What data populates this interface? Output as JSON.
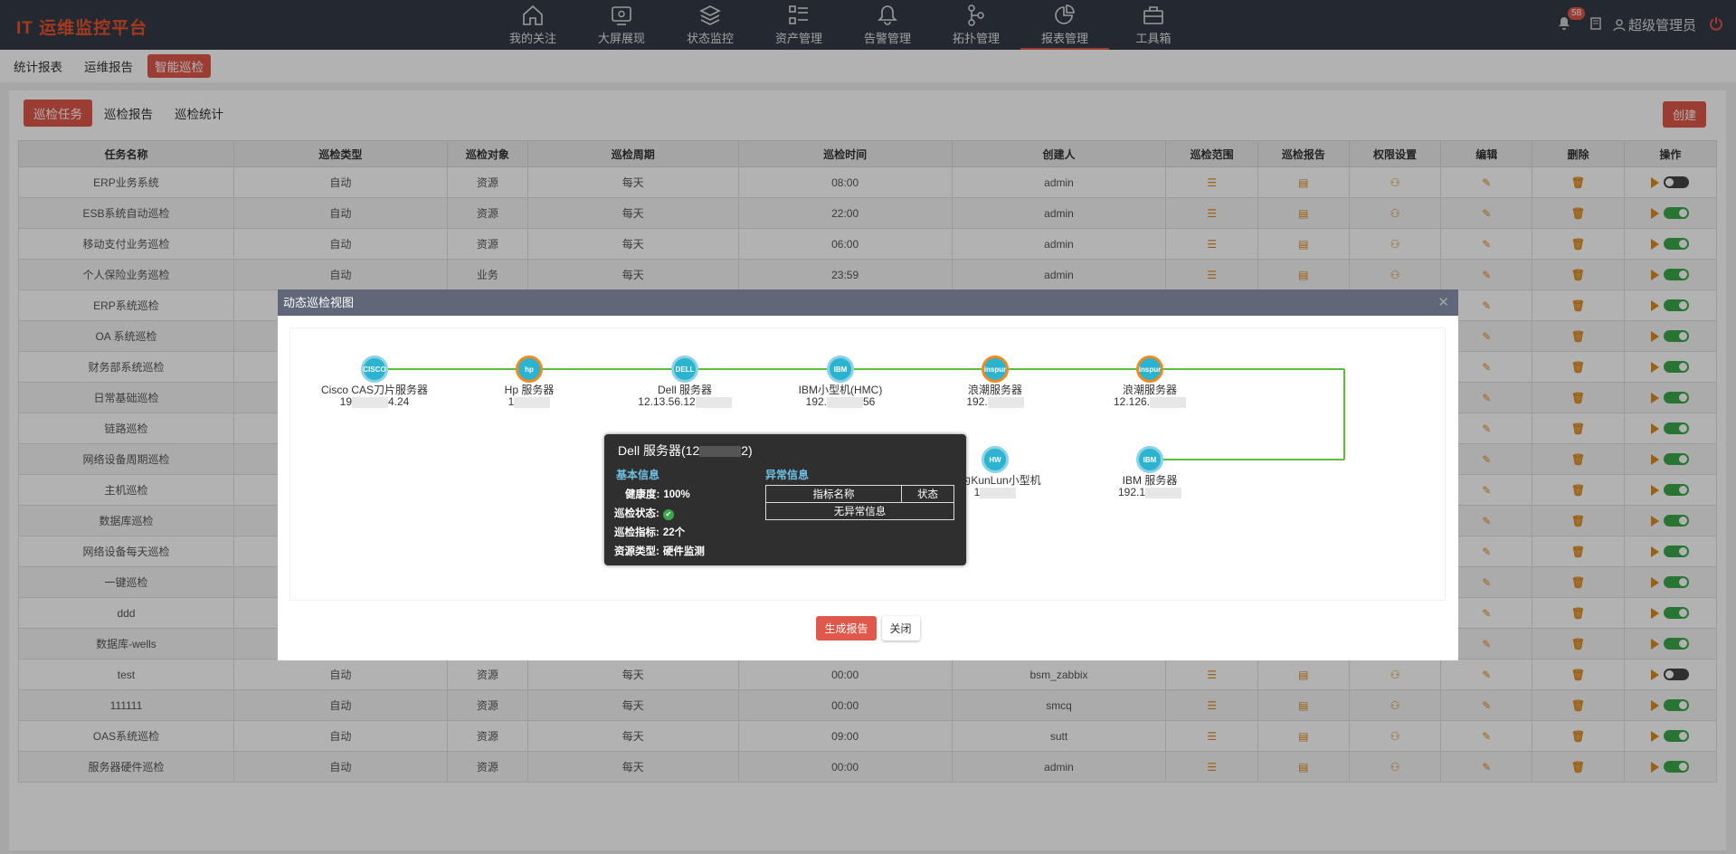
{
  "brand": "IT 运维监控平台",
  "nav": [
    {
      "label": "我的关注",
      "icon": "home-icon"
    },
    {
      "label": "大屏展现",
      "icon": "screen-icon"
    },
    {
      "label": "状态监控",
      "icon": "layers-icon"
    },
    {
      "label": "资产管理",
      "icon": "list-icon"
    },
    {
      "label": "告警管理",
      "icon": "bell-icon"
    },
    {
      "label": "拓扑管理",
      "icon": "topology-icon"
    },
    {
      "label": "报表管理",
      "icon": "pie-chart-icon"
    },
    {
      "label": "工具箱",
      "icon": "toolbox-icon"
    }
  ],
  "active_nav": "报表管理",
  "notif_count": "58",
  "username": "超级管理员",
  "subnav": [
    "统计报表",
    "运维报告",
    "智能巡检"
  ],
  "active_subnav": "智能巡检",
  "tabs": [
    "巡检任务",
    "巡检报告",
    "巡检统计"
  ],
  "active_tab": "巡检任务",
  "create_label": "创建",
  "columns": [
    "任务名称",
    "巡检类型",
    "巡检对象",
    "巡检周期",
    "巡检时间",
    "创建人",
    "巡检范围",
    "巡检报告",
    "权限设置",
    "编辑",
    "删除",
    "操作"
  ],
  "rows": [
    {
      "name": "ERP业务系统",
      "type": "自动",
      "obj": "资源",
      "cycle": "每天",
      "time": "08:00",
      "creator": "admin",
      "on": false
    },
    {
      "name": "ESB系统自动巡检",
      "type": "自动",
      "obj": "资源",
      "cycle": "每天",
      "time": "22:00",
      "creator": "admin",
      "on": true
    },
    {
      "name": "移动支付业务巡检",
      "type": "自动",
      "obj": "资源",
      "cycle": "每天",
      "time": "06:00",
      "creator": "admin",
      "on": true
    },
    {
      "name": "个人保险业务巡检",
      "type": "自动",
      "obj": "业务",
      "cycle": "每天",
      "time": "23:59",
      "creator": "admin",
      "on": true
    },
    {
      "name": "ERP系统巡检",
      "type": "",
      "obj": "",
      "cycle": "",
      "time": "",
      "creator": "",
      "on": true
    },
    {
      "name": "OA 系统巡检",
      "type": "",
      "obj": "",
      "cycle": "",
      "time": "",
      "creator": "",
      "on": true
    },
    {
      "name": "财务部系统巡检",
      "type": "",
      "obj": "",
      "cycle": "",
      "time": "",
      "creator": "",
      "on": true
    },
    {
      "name": "日常基础巡检",
      "type": "",
      "obj": "",
      "cycle": "",
      "time": "",
      "creator": "",
      "on": true
    },
    {
      "name": "链路巡检",
      "type": "",
      "obj": "",
      "cycle": "",
      "time": "",
      "creator": "",
      "on": true
    },
    {
      "name": "网络设备周期巡检",
      "type": "",
      "obj": "",
      "cycle": "",
      "time": "",
      "creator": "",
      "on": true
    },
    {
      "name": "主机巡检",
      "type": "",
      "obj": "",
      "cycle": "",
      "time": "",
      "creator": "",
      "on": true
    },
    {
      "name": "数据库巡检",
      "type": "",
      "obj": "",
      "cycle": "",
      "time": "",
      "creator": "",
      "on": true
    },
    {
      "name": "网络设备每天巡检",
      "type": "",
      "obj": "",
      "cycle": "",
      "time": "",
      "creator": "",
      "on": true
    },
    {
      "name": "一键巡检",
      "type": "",
      "obj": "",
      "cycle": "",
      "time": "",
      "creator": "",
      "on": true
    },
    {
      "name": "ddd",
      "type": "",
      "obj": "",
      "cycle": "",
      "time": "",
      "creator": "",
      "on": true
    },
    {
      "name": "数据库-wells",
      "type": "",
      "obj": "",
      "cycle": "",
      "time": "",
      "creator": "",
      "on": true
    },
    {
      "name": "test",
      "type": "自动",
      "obj": "资源",
      "cycle": "每天",
      "time": "00:00",
      "creator": "bsm_zabbix",
      "on": false
    },
    {
      "name": "111111",
      "type": "自动",
      "obj": "资源",
      "cycle": "每天",
      "time": "00:00",
      "creator": "smcq",
      "on": true
    },
    {
      "name": "OAS系统巡检",
      "type": "自动",
      "obj": "资源",
      "cycle": "每天",
      "time": "09:00",
      "creator": "sutt",
      "on": true
    },
    {
      "name": "服务器硬件巡检",
      "type": "自动",
      "obj": "资源",
      "cycle": "每天",
      "time": "00:00",
      "creator": "admin",
      "on": true
    }
  ],
  "modal": {
    "title": "动态巡检视图",
    "nodes": [
      {
        "label": "Cisco CAS刀片服务器",
        "ip": "19",
        "ip2": "4.24",
        "logo": "CISCO",
        "orange": false
      },
      {
        "label": "Hp 服务器",
        "ip": "1",
        "ip2": "",
        "logo": "hp",
        "orange": true
      },
      {
        "label": "Dell 服务器",
        "ip": "12.13.56.12",
        "ip2": "",
        "logo": "DELL",
        "orange": false
      },
      {
        "label": "IBM小型机(HMC)",
        "ip": "192.",
        "ip2": "56",
        "logo": "IBM",
        "orange": false
      },
      {
        "label": "浪潮服务器",
        "ip": "192.",
        "ip2": "",
        "logo": "inspur",
        "orange": true
      },
      {
        "label": "浪潮服务器",
        "ip": "12.126.",
        "ip2": "",
        "logo": "inspur",
        "orange": true
      },
      {
        "label": "华为KunLun小型机",
        "ip": "1",
        "ip2": "",
        "logo": "HW",
        "orange": false
      },
      {
        "label": "IBM 服务器",
        "ip": "192.1",
        "ip2": "",
        "logo": "IBM",
        "orange": false
      }
    ],
    "tooltip": {
      "title_prefix": "Dell 服务器(12",
      "title_suffix": "2)",
      "basic_title": "基本信息",
      "abnormal_title": "异常信息",
      "health_label": "健康度:",
      "health": "100%",
      "status_label": "巡检状态:",
      "metric_label": "巡检指标:",
      "metric": "22个",
      "res_label": "资源类型:",
      "res": "硬件监测",
      "col_metric": "指标名称",
      "col_status": "状态",
      "empty": "无异常信息"
    },
    "gen_label": "生成报告",
    "close_label": "关闭"
  }
}
